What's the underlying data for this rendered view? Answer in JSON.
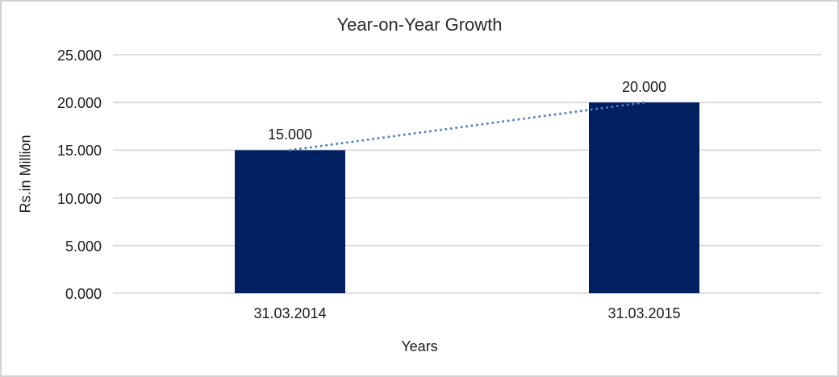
{
  "chart_data": {
    "type": "bar",
    "title": "Year-on-Year Growth",
    "xlabel": "Years",
    "ylabel": "Rs.in Million",
    "categories": [
      "31.03.2014",
      "31.03.2015"
    ],
    "values": [
      15.0,
      20.0
    ],
    "data_labels": [
      "15.000",
      "20.000"
    ],
    "ylim": [
      0,
      25
    ],
    "y_ticks": [
      0,
      5,
      10,
      15,
      20,
      25
    ],
    "y_tick_labels": [
      "0.000",
      "5.000",
      "10.000",
      "15.000",
      "20.000",
      "25.000"
    ],
    "grid": true,
    "legend": "none",
    "trendline": {
      "type": "linear",
      "style": "dotted"
    },
    "colors": {
      "bar": "#002060",
      "trendline": "#5081bd",
      "gridline": "#d9d9d9",
      "axis_line": "#d9d9d9",
      "text": "#1a1a1a",
      "background": "#ffffff",
      "frame_border": "#d3d3d3"
    }
  }
}
